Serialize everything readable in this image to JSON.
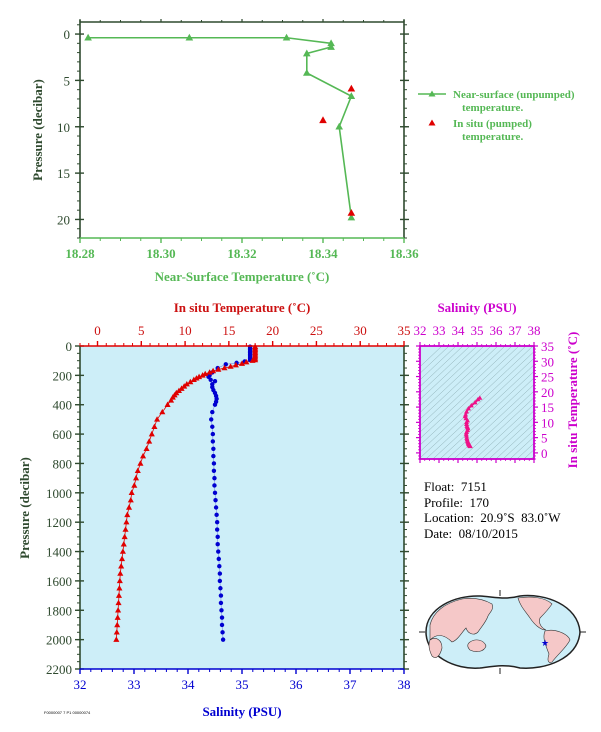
{
  "colors": {
    "axis_dark": "#2f4a2f",
    "green": "#55b855",
    "red": "#e00000",
    "blue": "#0000d0",
    "magenta": "#cc00cc",
    "pink": "#ee1188",
    "plot_bg": "#cdeef8",
    "land": "#f5c8c8"
  },
  "chart_data": [
    {
      "id": "near-surface",
      "type": "line",
      "xlabel": "Near-Surface Temperature (˚C)",
      "ylabel": "Pressure (decibar)",
      "xlim": [
        18.28,
        18.36
      ],
      "ylim": [
        22,
        -1.3
      ],
      "xticks": [
        "18.28",
        "18.30",
        "18.32",
        "18.34",
        "18.36"
      ],
      "xtick_values": [
        18.28,
        18.3,
        18.32,
        18.34,
        18.36
      ],
      "yticks": [
        "0",
        "5",
        "10",
        "15",
        "20"
      ],
      "ytick_values": [
        0,
        5,
        10,
        15,
        20
      ],
      "legend": {
        "placement": "right",
        "entries": [
          {
            "line1": "Near-surface (unpumped)",
            "line2": "temperature."
          },
          {
            "line1": "In situ (pumped)",
            "line2": "temperature."
          }
        ]
      },
      "series": [
        {
          "name": "Near-surface (unpumped) temperature.",
          "marker": "triangle-line",
          "points": [
            [
              18.282,
              0.4
            ],
            [
              18.307,
              0.4
            ],
            [
              18.331,
              0.4
            ],
            [
              18.342,
              1.0
            ],
            [
              18.342,
              1.4
            ],
            [
              18.336,
              2.1
            ],
            [
              18.336,
              4.2
            ],
            [
              18.347,
              6.7
            ],
            [
              18.344,
              10.0
            ],
            [
              18.347,
              19.8
            ]
          ]
        },
        {
          "name": "In situ (pumped) temperature.",
          "marker": "triangle",
          "points": [
            [
              18.347,
              5.9
            ],
            [
              18.34,
              9.3
            ],
            [
              18.347,
              19.3
            ]
          ]
        }
      ]
    },
    {
      "id": "profile",
      "type": "scatter",
      "title_top": "In situ Temperature (˚C)",
      "xlabel": "Salinity (PSU)",
      "ylabel": "Pressure (decibar)",
      "temp_lim": [
        -2,
        35
      ],
      "sal_lim": [
        32,
        38
      ],
      "ylim": [
        0,
        2200
      ],
      "temp_ticks": [
        "0",
        "5",
        "10",
        "15",
        "20",
        "25",
        "30",
        "35"
      ],
      "temp_tick_values": [
        0,
        5,
        10,
        15,
        20,
        25,
        30,
        35
      ],
      "sal_ticks": [
        "32",
        "33",
        "34",
        "35",
        "36",
        "37",
        "38"
      ],
      "sal_tick_values": [
        32,
        33,
        34,
        35,
        36,
        37,
        38
      ],
      "yticks": [
        "0",
        "200",
        "400",
        "600",
        "800",
        "1000",
        "1200",
        "1400",
        "1600",
        "1800",
        "2000",
        "2200"
      ],
      "ytick_values": [
        0,
        200,
        400,
        600,
        800,
        1000,
        1200,
        1400,
        1600,
        1800,
        2000,
        2200
      ],
      "series": [
        {
          "name": "In situ Temperature",
          "marker": "triangle",
          "points": [
            [
              18.0,
              5
            ],
            [
              18.0,
              15
            ],
            [
              18.0,
              25
            ],
            [
              18.0,
              35
            ],
            [
              18.0,
              45
            ],
            [
              18.0,
              55
            ],
            [
              18.0,
              65
            ],
            [
              18.0,
              75
            ],
            [
              18.0,
              85
            ],
            [
              18.0,
              95
            ],
            [
              17.7,
              100
            ],
            [
              17.0,
              110
            ],
            [
              16.5,
              120
            ],
            [
              15.8,
              130
            ],
            [
              15.2,
              140
            ],
            [
              14.5,
              150
            ],
            [
              13.8,
              160
            ],
            [
              13.2,
              170
            ],
            [
              12.8,
              180
            ],
            [
              12.3,
              190
            ],
            [
              12.0,
              200
            ],
            [
              11.6,
              210
            ],
            [
              11.3,
              220
            ],
            [
              11.0,
              230
            ],
            [
              10.6,
              245
            ],
            [
              10.2,
              260
            ],
            [
              9.9,
              275
            ],
            [
              9.6,
              290
            ],
            [
              9.3,
              305
            ],
            [
              9.0,
              320
            ],
            [
              8.8,
              335
            ],
            [
              8.6,
              350
            ],
            [
              8.4,
              370
            ],
            [
              8.0,
              400
            ],
            [
              7.4,
              450
            ],
            [
              6.8,
              500
            ],
            [
              6.5,
              550
            ],
            [
              6.2,
              600
            ],
            [
              5.9,
              650
            ],
            [
              5.6,
              700
            ],
            [
              5.2,
              750
            ],
            [
              4.9,
              800
            ],
            [
              4.6,
              850
            ],
            [
              4.4,
              900
            ],
            [
              4.2,
              950
            ],
            [
              3.9,
              1000
            ],
            [
              3.8,
              1050
            ],
            [
              3.6,
              1100
            ],
            [
              3.4,
              1150
            ],
            [
              3.3,
              1200
            ],
            [
              3.2,
              1250
            ],
            [
              3.1,
              1300
            ],
            [
              3.0,
              1350
            ],
            [
              2.9,
              1400
            ],
            [
              2.8,
              1450
            ],
            [
              2.7,
              1500
            ],
            [
              2.6,
              1550
            ],
            [
              2.55,
              1600
            ],
            [
              2.5,
              1650
            ],
            [
              2.45,
              1700
            ],
            [
              2.4,
              1750
            ],
            [
              2.35,
              1800
            ],
            [
              2.3,
              1850
            ],
            [
              2.25,
              1900
            ],
            [
              2.2,
              1950
            ],
            [
              2.15,
              2000
            ]
          ]
        },
        {
          "name": "Salinity",
          "marker": "circle",
          "points": [
            [
              35.15,
              5
            ],
            [
              35.15,
              15
            ],
            [
              35.15,
              25
            ],
            [
              35.15,
              35
            ],
            [
              35.15,
              45
            ],
            [
              35.15,
              55
            ],
            [
              35.15,
              65
            ],
            [
              35.15,
              75
            ],
            [
              35.15,
              85
            ],
            [
              35.15,
              95
            ],
            [
              35.05,
              105
            ],
            [
              34.9,
              115
            ],
            [
              34.7,
              125
            ],
            [
              34.55,
              150
            ],
            [
              34.45,
              180
            ],
            [
              34.4,
              200
            ],
            [
              34.38,
              210
            ],
            [
              34.42,
              230
            ],
            [
              34.5,
              240
            ],
            [
              34.45,
              260
            ],
            [
              34.45,
              280
            ],
            [
              34.47,
              300
            ],
            [
              34.5,
              320
            ],
            [
              34.52,
              340
            ],
            [
              34.53,
              360
            ],
            [
              34.52,
              380
            ],
            [
              34.5,
              400
            ],
            [
              34.45,
              450
            ],
            [
              34.43,
              500
            ],
            [
              34.45,
              550
            ],
            [
              34.46,
              600
            ],
            [
              34.46,
              650
            ],
            [
              34.47,
              700
            ],
            [
              34.47,
              750
            ],
            [
              34.48,
              800
            ],
            [
              34.48,
              850
            ],
            [
              34.49,
              900
            ],
            [
              34.49,
              950
            ],
            [
              34.5,
              1000
            ],
            [
              34.51,
              1050
            ],
            [
              34.52,
              1100
            ],
            [
              34.53,
              1150
            ],
            [
              34.54,
              1200
            ],
            [
              34.54,
              1250
            ],
            [
              34.55,
              1300
            ],
            [
              34.55,
              1350
            ],
            [
              34.56,
              1400
            ],
            [
              34.57,
              1450
            ],
            [
              34.58,
              1500
            ],
            [
              34.59,
              1550
            ],
            [
              34.59,
              1600
            ],
            [
              34.6,
              1650
            ],
            [
              34.61,
              1700
            ],
            [
              34.61,
              1750
            ],
            [
              34.62,
              1800
            ],
            [
              34.63,
              1850
            ],
            [
              34.63,
              1900
            ],
            [
              34.64,
              1950
            ],
            [
              34.65,
              2000
            ]
          ]
        }
      ]
    },
    {
      "id": "ts-diagram",
      "type": "scatter",
      "title_top": "Salinity (PSU)",
      "ylabel": "In situ Temperature (˚C)",
      "xlim": [
        32,
        38
      ],
      "ylim": [
        -2,
        35
      ],
      "xticks": [
        "32",
        "33",
        "34",
        "35",
        "36",
        "37",
        "38"
      ],
      "xtick_values": [
        32,
        33,
        34,
        35,
        36,
        37,
        38
      ],
      "yticks": [
        "0",
        "5",
        "10",
        "15",
        "20",
        "25",
        "30",
        "35"
      ],
      "ytick_values": [
        0,
        5,
        10,
        15,
        20,
        25,
        30,
        35
      ],
      "series": [
        {
          "name": "T-S",
          "marker": "triangle",
          "points": [
            [
              35.15,
              18.0
            ],
            [
              35.05,
              17.5
            ],
            [
              34.9,
              16.5
            ],
            [
              34.7,
              15.5
            ],
            [
              34.55,
              14.5
            ],
            [
              34.45,
              13.5
            ],
            [
              34.4,
              12.5
            ],
            [
              34.38,
              12.0
            ],
            [
              34.42,
              11.3
            ],
            [
              34.5,
              10.6
            ],
            [
              34.45,
              10.0
            ],
            [
              34.45,
              9.4
            ],
            [
              34.47,
              8.8
            ],
            [
              34.5,
              8.4
            ],
            [
              34.52,
              8.0
            ],
            [
              34.5,
              7.4
            ],
            [
              34.45,
              6.8
            ],
            [
              34.43,
              6.2
            ],
            [
              34.45,
              5.6
            ],
            [
              34.46,
              4.9
            ],
            [
              34.48,
              4.4
            ],
            [
              34.5,
              3.9
            ],
            [
              34.52,
              3.6
            ],
            [
              34.54,
              3.3
            ],
            [
              34.55,
              3.0
            ],
            [
              34.57,
              2.8
            ],
            [
              34.59,
              2.6
            ],
            [
              34.61,
              2.4
            ],
            [
              34.63,
              2.3
            ],
            [
              34.65,
              2.15
            ]
          ]
        }
      ]
    }
  ],
  "info": {
    "float": "Float:  7151",
    "profile": "Profile:  170",
    "location": "Location:  20.9˚S  83.0˚W",
    "date": "Date:  08/10/2015"
  },
  "map": {
    "marker": "star",
    "float_position": {
      "lat": -20.9,
      "lon": -83.0
    }
  },
  "stamp": "F0000007 7 P1 00000074"
}
